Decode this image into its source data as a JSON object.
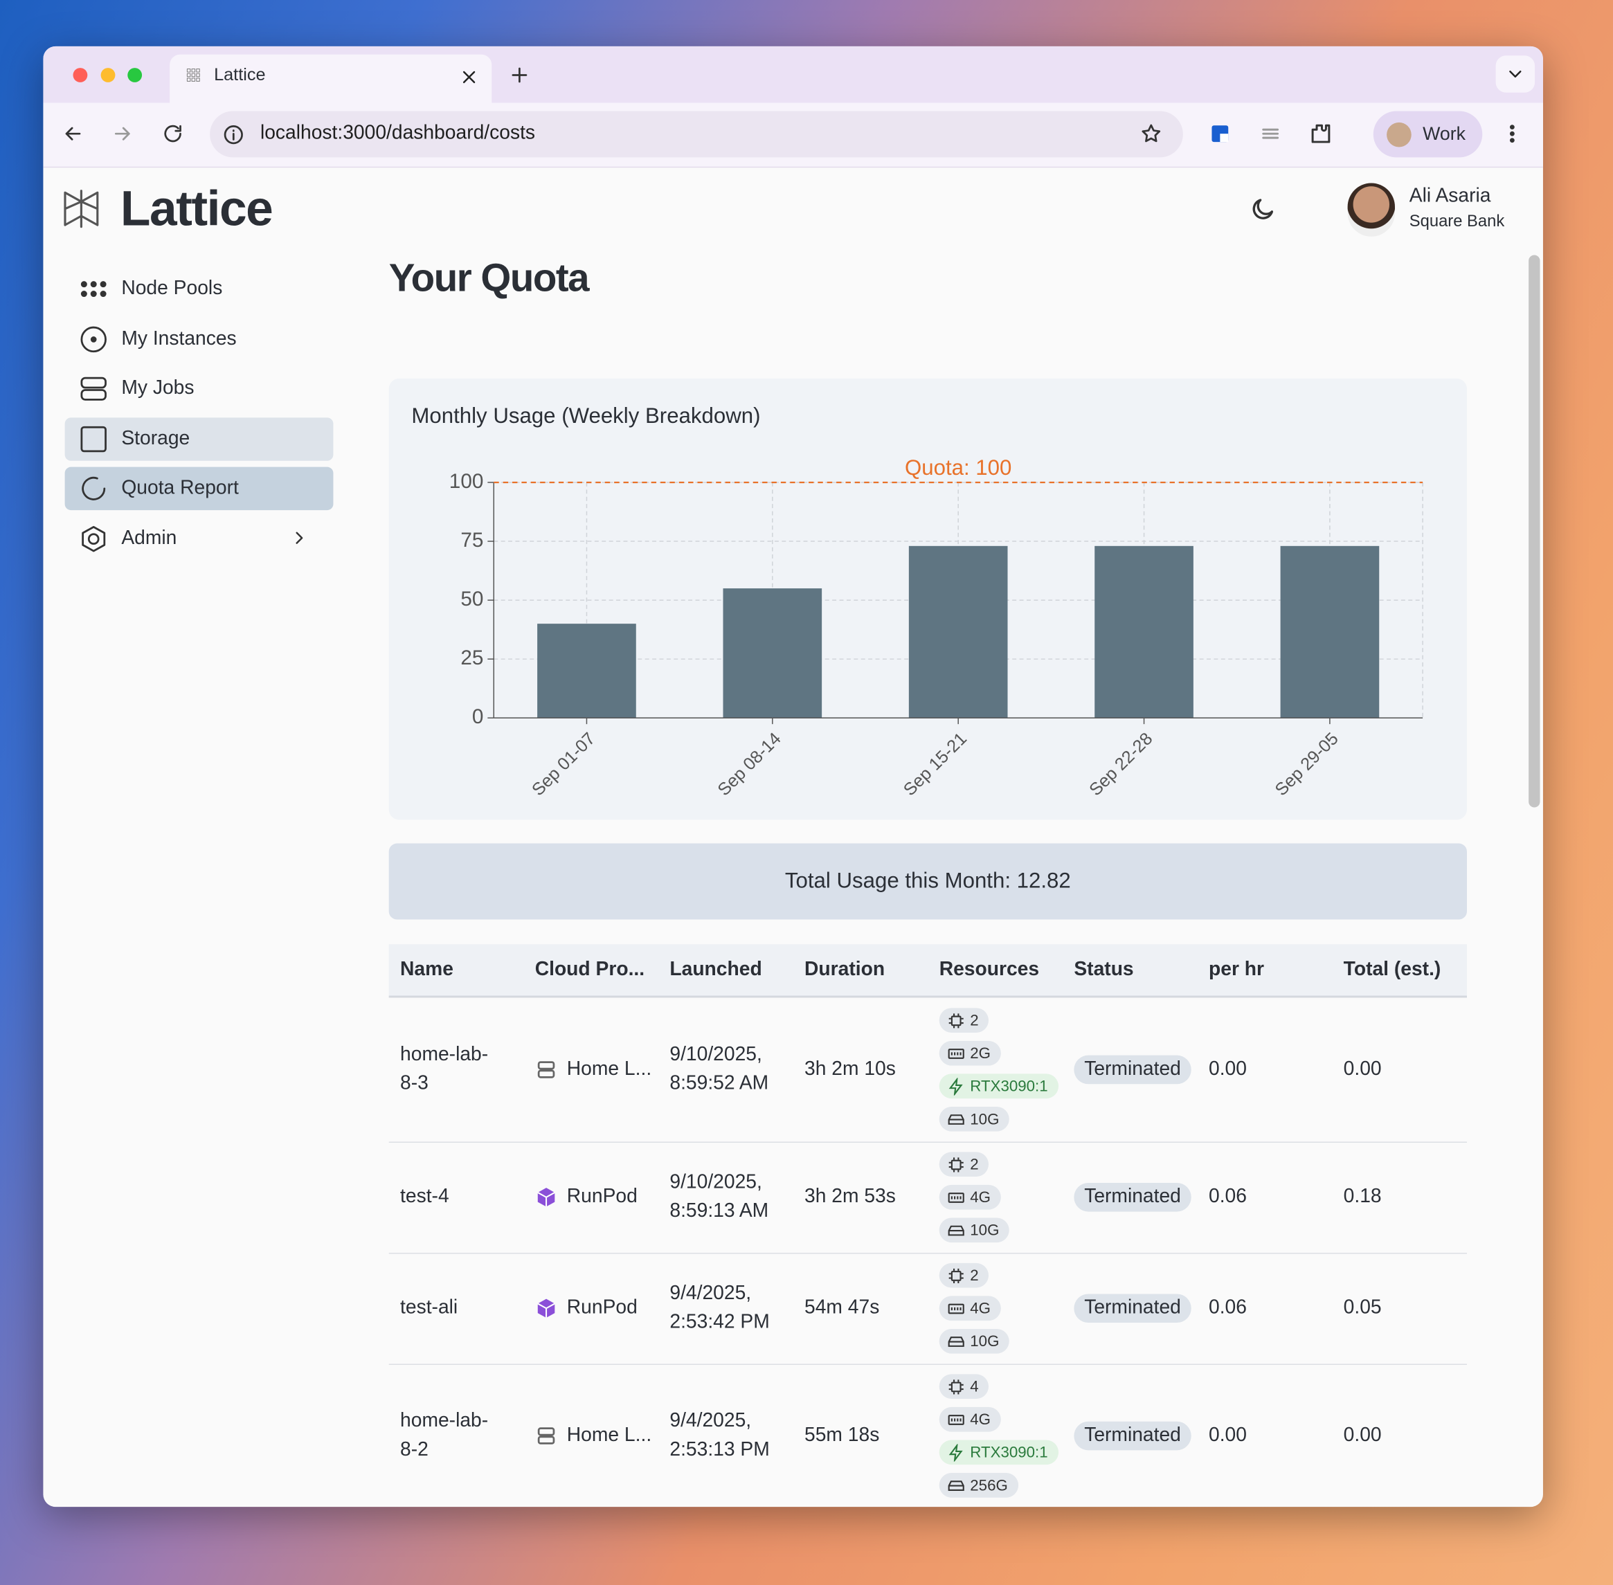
{
  "browser": {
    "tab_title": "Lattice",
    "url": "localhost:3000/dashboard/costs",
    "profile": "Work"
  },
  "app": {
    "logo": "Lattice",
    "user_name": "Ali Asaria",
    "user_org": "Square Bank",
    "nav": [
      "Node Pools",
      "My Instances",
      "My Jobs",
      "Storage",
      "Quota Report",
      "Admin"
    ],
    "page_title": "Your Quota",
    "total_usage": "Total Usage this Month: 12.82"
  },
  "chart_data": {
    "type": "bar",
    "title": "Monthly Usage (Weekly Breakdown)",
    "categories": [
      "Sep 01-07",
      "Sep 08-14",
      "Sep 15-21",
      "Sep 22-28",
      "Sep 29-05"
    ],
    "values": [
      40,
      55,
      73,
      73,
      73
    ],
    "color": "#5f7582",
    "ylim": [
      0,
      100
    ],
    "yticks": [
      0,
      25,
      50,
      75,
      100
    ],
    "grid": true,
    "quota": {
      "value": 100,
      "label": "Quota: 100",
      "color": "#e8722a"
    }
  },
  "table": {
    "columns": [
      "Name",
      "Cloud Pro...",
      "Launched",
      "Duration",
      "Resources",
      "Status",
      "per hr",
      "Total (est.)"
    ],
    "rows": [
      {
        "name": "home-lab-8-3",
        "provider": "Home L...",
        "launched": "9/10/2025, 8:59:52 AM",
        "duration": "3h 2m 10s",
        "resources": {
          "cpu": "2",
          "mem": "2G",
          "gpu": "RTX3090:1",
          "disk": "10G"
        },
        "status": "Terminated",
        "per_hr": "0.00",
        "total": "0.00"
      },
      {
        "name": "test-4",
        "provider": "RunPod",
        "launched": "9/10/2025, 8:59:13 AM",
        "duration": "3h 2m 53s",
        "resources": {
          "cpu": "2",
          "mem": "4G",
          "disk": "10G"
        },
        "status": "Terminated",
        "per_hr": "0.06",
        "total": "0.18"
      },
      {
        "name": "test-ali",
        "provider": "RunPod",
        "launched": "9/4/2025, 2:53:42 PM",
        "duration": "54m 47s",
        "resources": {
          "cpu": "2",
          "mem": "4G",
          "disk": "10G"
        },
        "status": "Terminated",
        "per_hr": "0.06",
        "total": "0.05"
      },
      {
        "name": "home-lab-8-2",
        "provider": "Home L...",
        "launched": "9/4/2025, 2:53:13 PM",
        "duration": "55m 18s",
        "resources": {
          "cpu": "4",
          "mem": "4G",
          "gpu": "RTX3090:1",
          "disk": "256G"
        },
        "status": "Terminated",
        "per_hr": "0.00",
        "total": "0.00"
      }
    ]
  }
}
